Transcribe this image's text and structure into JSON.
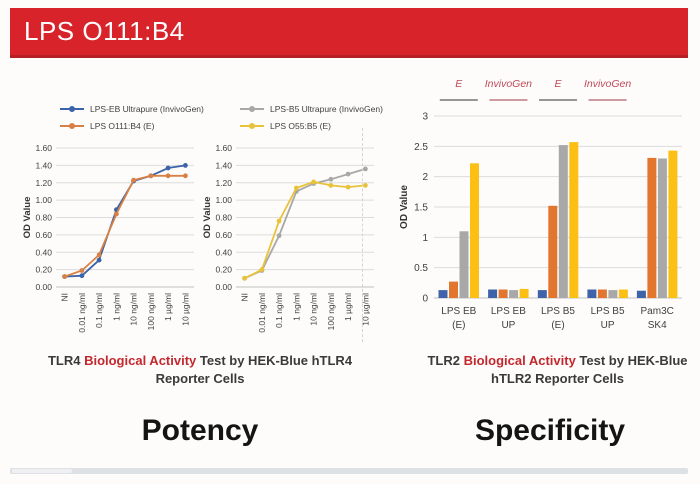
{
  "slide": {
    "title": "LPS O111:B4"
  },
  "colors": {
    "header_bg": "#d8232a",
    "caption_red": "#c2282e",
    "caption_dark": "#3a3a3a",
    "grid": "#dcdcdc",
    "axis": "#c0c0c0",
    "tick_text": "#404040",
    "annotation_text": "#c04a5a"
  },
  "sections": {
    "potency": {
      "caption": {
        "prefix": "TLR4 ",
        "highlight": "Biological Activity",
        "suffix": " Test by HEK-Blue hTLR4 Reporter Cells"
      },
      "label": "Potency"
    },
    "specificity": {
      "caption": {
        "prefix": "TLR2 ",
        "highlight": "Biological Activity",
        "suffix": " Test by HEK-Blue hTLR2 Reporter Cells"
      },
      "label": "Specificity"
    }
  },
  "chart_data": [
    {
      "id": "tlr4-line-lps-eb",
      "type": "line",
      "title": "",
      "xlabel": "",
      "ylabel": "OD Value",
      "ylim": [
        0,
        1.6
      ],
      "ytick_labels": [
        "0.00",
        "0.20",
        "0.40",
        "0.60",
        "0.80",
        "1.00",
        "1.20",
        "1.40",
        "1.60"
      ],
      "grid": true,
      "legend_position": "top",
      "categories": [
        "NI",
        "0.01 ng/ml",
        "0.1 ng/ml",
        "1 ng/ml",
        "10 ng/ml",
        "100 ng/ml",
        "1 µg/ml",
        "10 µg/ml"
      ],
      "series": [
        {
          "name": "LPS-EB Ultrapure (InvivoGen)",
          "color": "#3c63a8",
          "values": [
            0.12,
            0.13,
            0.31,
            0.89,
            1.22,
            1.28,
            1.37,
            1.4
          ]
        },
        {
          "name": "LPS O111:B4 (E)",
          "color": "#d98144",
          "values": [
            0.12,
            0.19,
            0.37,
            0.84,
            1.23,
            1.28,
            1.28,
            1.28
          ]
        }
      ]
    },
    {
      "id": "tlr4-line-lps-b5",
      "type": "line",
      "title": "",
      "xlabel": "",
      "ylabel": "OD Value",
      "ylim": [
        0,
        1.6
      ],
      "ytick_labels": [
        "0.00",
        "0.20",
        "0.40",
        "0.60",
        "0.80",
        "1.00",
        "1.20",
        "1.40",
        "1.60"
      ],
      "grid": true,
      "legend_position": "top",
      "categories": [
        "NI",
        "0.01 ng/ml",
        "0.1 ng/ml",
        "1 ng/ml",
        "10 ng/ml",
        "100 ng/ml",
        "1 µg/ml",
        "10 µg/ml"
      ],
      "series": [
        {
          "name": "LPS-B5 Ultrapure (InvivoGen)",
          "color": "#a8a8a8",
          "values": [
            0.1,
            0.19,
            0.59,
            1.1,
            1.19,
            1.24,
            1.3,
            1.36
          ]
        },
        {
          "name": "LPS O55:B5 (E)",
          "color": "#e8c33a",
          "values": [
            0.1,
            0.2,
            0.76,
            1.14,
            1.21,
            1.17,
            1.15,
            1.17
          ]
        }
      ]
    },
    {
      "id": "tlr2-bar",
      "type": "bar",
      "title": "",
      "xlabel": "",
      "ylabel": "OD Value",
      "ylim": [
        0,
        3
      ],
      "yticks": [
        "0",
        "0.5",
        "1",
        "1.5",
        "2",
        "2.5",
        "3"
      ],
      "grid": true,
      "categories": [
        [
          "LPS EB",
          "(E)"
        ],
        [
          "LPS EB",
          "UP"
        ],
        [
          "LPS B5",
          "(E)"
        ],
        [
          "LPS B5",
          "UP"
        ],
        [
          "Pam3C",
          "SK4"
        ]
      ],
      "series": [
        {
          "name": "blue",
          "color": "#3f63a9",
          "values": [
            0.13,
            0.14,
            0.13,
            0.14,
            0.12
          ]
        },
        {
          "name": "orange",
          "color": "#e2762f",
          "values": [
            0.27,
            0.14,
            1.52,
            0.14,
            2.31
          ]
        },
        {
          "name": "gray",
          "color": "#a8a8a8",
          "values": [
            1.1,
            0.13,
            2.52,
            0.13,
            2.3
          ]
        },
        {
          "name": "yellow",
          "color": "#fcc014",
          "values": [
            2.22,
            0.15,
            2.57,
            0.14,
            2.43
          ]
        }
      ],
      "annotations": [
        {
          "label": "E",
          "line_color": "#595959"
        },
        {
          "label": "InvivoGen",
          "line_color": "#b0606a"
        },
        {
          "label": "E",
          "line_color": "#595959"
        },
        {
          "label": "InvivoGen",
          "line_color": "#b0606a"
        }
      ]
    }
  ]
}
